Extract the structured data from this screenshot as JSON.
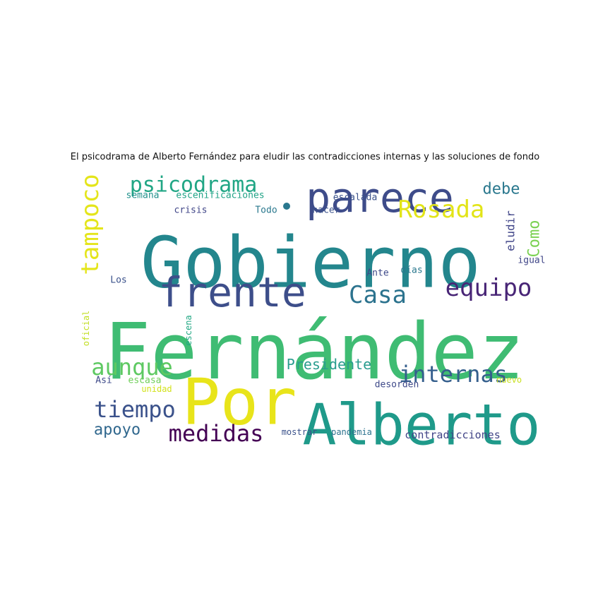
{
  "title": "El psicodrama de Alberto Fernández para eludir las contradicciones internas y las soluciones de fondo",
  "words": [
    {
      "text": "Fernández",
      "color": "#3fbc73"
    },
    {
      "text": "Gobierno",
      "color": "#23868d"
    },
    {
      "text": "Alberto",
      "color": "#1f9a8a"
    },
    {
      "text": "Por",
      "color": "#e8e41a"
    },
    {
      "text": "parece",
      "color": "#3e4c8a"
    },
    {
      "text": "frente",
      "color": "#3d4e8a"
    },
    {
      "text": "psicodrama",
      "color": "#21a685"
    },
    {
      "text": "Rosada",
      "color": "#e2e418"
    },
    {
      "text": "tampoco",
      "color": "#e4e51a"
    },
    {
      "text": "equipo",
      "color": "#482576"
    },
    {
      "text": "Casa",
      "color": "#2c738e"
    },
    {
      "text": "aunque",
      "color": "#5ec962"
    },
    {
      "text": "internas",
      "color": "#355f8d"
    },
    {
      "text": "tiempo",
      "color": "#3b528b"
    },
    {
      "text": "medidas",
      "color": "#440154"
    },
    {
      "text": "Presidente",
      "color": "#2a9d8f"
    },
    {
      "text": "apoyo",
      "color": "#31688e"
    },
    {
      "text": "debe",
      "color": "#2a788e"
    },
    {
      "text": "Como",
      "color": "#7ad151"
    },
    {
      "text": "eludir",
      "color": "#404588"
    },
    {
      "text": "contradicciones",
      "color": "#414487"
    },
    {
      "text": "semana",
      "color": "#21918c"
    },
    {
      "text": "escenificaciones",
      "color": "#20a386"
    },
    {
      "text": "escalada",
      "color": "#3b528b"
    },
    {
      "text": "crisis",
      "color": "#404688"
    },
    {
      "text": "Todo",
      "color": "#2a788e"
    },
    {
      "text": "hacer",
      "color": "#3b528b"
    },
    {
      "text": "igual",
      "color": "#404688"
    },
    {
      "text": "Los",
      "color": "#3b528b"
    },
    {
      "text": "Ante",
      "color": "#3e4989"
    },
    {
      "text": "días",
      "color": "#2a788e"
    },
    {
      "text": "oficial",
      "color": "#c2df23"
    },
    {
      "text": "escena",
      "color": "#22a884"
    },
    {
      "text": "Así",
      "color": "#3e4a89"
    },
    {
      "text": "escasa",
      "color": "#6ece58"
    },
    {
      "text": "unidad",
      "color": "#d2e21b"
    },
    {
      "text": "desorden",
      "color": "#3e4989"
    },
    {
      "text": "nuevo",
      "color": "#c8e020"
    },
    {
      "text": "mostrar",
      "color": "#3b528b"
    },
    {
      "text": "pandemia",
      "color": "#2c728e"
    }
  ]
}
